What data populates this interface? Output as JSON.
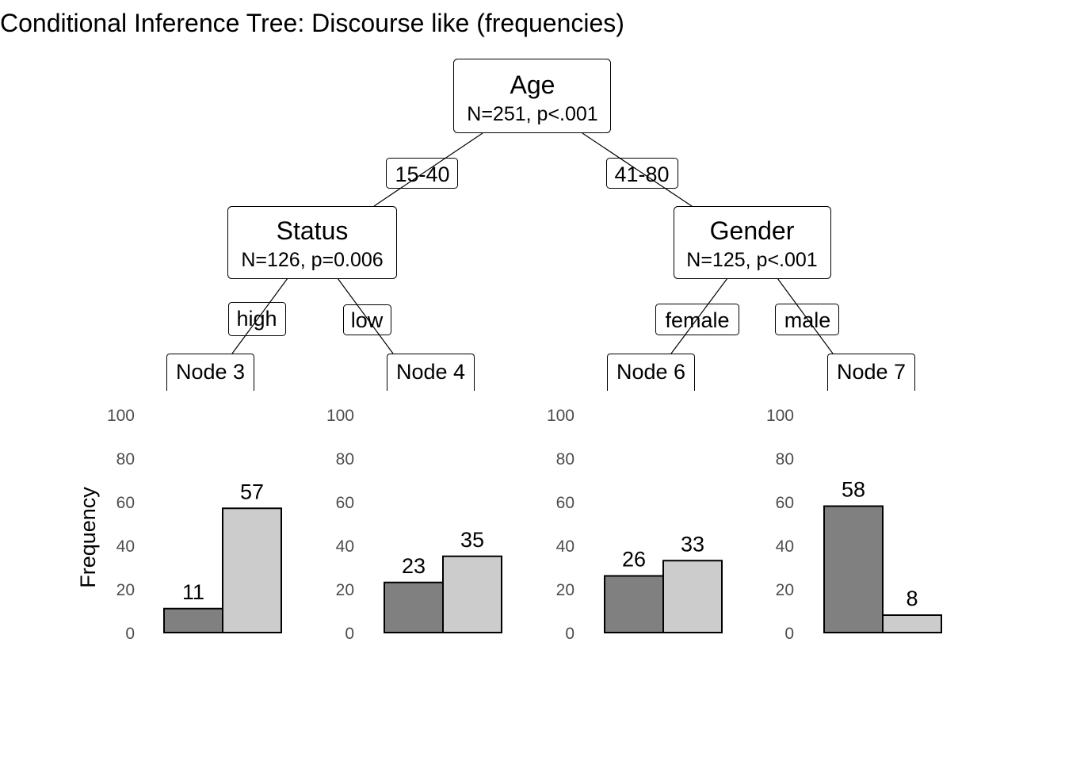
{
  "title": "Conditional Inference Tree: Discourse like (frequencies)",
  "colors": {
    "bar_dark": "#808080",
    "bar_light": "#cccccc",
    "tick_text": "#4d4d4d"
  },
  "nodes": {
    "root": {
      "name": "Age",
      "stat": "N=251, p<.001"
    },
    "left": {
      "name": "Status",
      "stat": "N=126, p=0.006"
    },
    "right": {
      "name": "Gender",
      "stat": "N=125, p<.001"
    }
  },
  "edges": {
    "root_left": "15-40",
    "root_right": "41-80",
    "left_left": "high",
    "left_right": "low",
    "right_left": "female",
    "right_right": "male"
  },
  "chart_data": {
    "type": "bar",
    "ylabel": "Frequency",
    "ylim": [
      0,
      100
    ],
    "yticks": [
      0,
      20,
      40,
      60,
      80,
      100
    ],
    "panels": [
      {
        "label": "Node 3",
        "values": [
          11,
          57
        ]
      },
      {
        "label": "Node 4",
        "values": [
          23,
          35
        ]
      },
      {
        "label": "Node 6",
        "values": [
          26,
          33
        ]
      },
      {
        "label": "Node 7",
        "values": [
          58,
          8
        ]
      }
    ]
  }
}
